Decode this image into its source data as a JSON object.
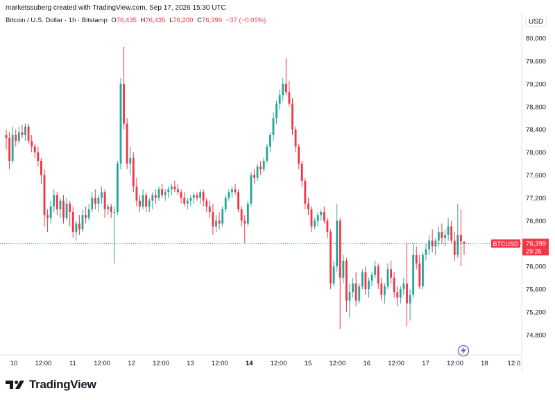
{
  "header": {
    "credit": "marketssuberg created with TradingView.com, Sep 17, 2026 15:30 UTC"
  },
  "legend": {
    "symbol": "Bitcoin / U.S. Dollar · 1h · Bitstamp",
    "o_label": "O",
    "o_value": "76,435",
    "h_label": "H",
    "h_value": "76,435",
    "l_label": "L",
    "l_value": "76,200",
    "c_label": "C",
    "c_value": "76,399",
    "change": "−37 (−0.05%)"
  },
  "currency": "USD",
  "brand": {
    "name": "TradingView"
  },
  "colors": {
    "up": "#26a69a",
    "down": "#f23645",
    "price_line": "#f23645"
  },
  "chart_data": {
    "type": "candlestick",
    "symbol": "BTCUSD",
    "ylim": [
      74400,
      80200
    ],
    "y_ticks": [
      "80,000",
      "79,600",
      "79,200",
      "78,800",
      "78,400",
      "78,000",
      "77,600",
      "77,200",
      "76,800",
      "76,400",
      "76,000",
      "75,600",
      "75,200",
      "74,800"
    ],
    "x_ticks": [
      "10",
      "12:00",
      "11",
      "12:00",
      "12",
      "12:00",
      "13",
      "12:00",
      "14",
      "12:00",
      "15",
      "12:00",
      "16",
      "12:00",
      "17",
      "12:00",
      "18",
      "12:0"
    ],
    "last_price_label": {
      "symbol": "BTCUSD",
      "price": "76,399",
      "countdown": "29:26",
      "value": 76399
    },
    "grid": false,
    "candles": [
      [
        78300,
        78400,
        78050,
        78250
      ],
      [
        78250,
        78350,
        77700,
        77850
      ],
      [
        77850,
        78450,
        77800,
        78300
      ],
      [
        78300,
        78400,
        78100,
        78200
      ],
      [
        78200,
        78450,
        78150,
        78350
      ],
      [
        78350,
        78480,
        78250,
        78300
      ],
      [
        78300,
        78500,
        78200,
        78450
      ],
      [
        78450,
        78500,
        78150,
        78200
      ],
      [
        78200,
        78300,
        78000,
        78100
      ],
      [
        78100,
        78150,
        77900,
        78000
      ],
      [
        78000,
        78100,
        77750,
        77850
      ],
      [
        77850,
        77900,
        77450,
        77600
      ],
      [
        77600,
        77700,
        76700,
        76900
      ],
      [
        76900,
        77000,
        76600,
        76850
      ],
      [
        76850,
        77150,
        76750,
        77050
      ],
      [
        77050,
        77350,
        76950,
        77250
      ],
      [
        77250,
        77300,
        76900,
        77000
      ],
      [
        77000,
        77200,
        76850,
        77150
      ],
      [
        77150,
        77250,
        76750,
        76850
      ],
      [
        76850,
        77200,
        76800,
        77100
      ],
      [
        77100,
        77150,
        76700,
        76950
      ],
      [
        76950,
        77050,
        76500,
        76600
      ],
      [
        76600,
        76800,
        76450,
        76750
      ],
      [
        76750,
        76900,
        76550,
        76650
      ],
      [
        76650,
        77000,
        76600,
        76900
      ],
      [
        76900,
        77050,
        76750,
        76850
      ],
      [
        76850,
        77100,
        76800,
        77000
      ],
      [
        77000,
        77300,
        76950,
        77200
      ],
      [
        77200,
        77350,
        77000,
        77100
      ],
      [
        77100,
        77250,
        76950,
        77200
      ],
      [
        77200,
        77400,
        77100,
        77300
      ],
      [
        77300,
        77350,
        76850,
        77000
      ],
      [
        77000,
        77100,
        76900,
        77050
      ],
      [
        77050,
        77100,
        76850,
        76950
      ],
      [
        76950,
        77050,
        76050,
        76950
      ],
      [
        76950,
        77850,
        76900,
        77800
      ],
      [
        77800,
        79300,
        77700,
        79200
      ],
      [
        79200,
        79850,
        78400,
        78500
      ],
      [
        78500,
        78600,
        77700,
        77800
      ],
      [
        77800,
        78100,
        77600,
        77900
      ],
      [
        77900,
        78000,
        77300,
        77400
      ],
      [
        77400,
        77550,
        77050,
        77150
      ],
      [
        77150,
        77250,
        76950,
        77050
      ],
      [
        77050,
        77350,
        77000,
        77250
      ],
      [
        77250,
        77300,
        76950,
        77050
      ],
      [
        77050,
        77200,
        76950,
        77150
      ],
      [
        77150,
        77300,
        77000,
        77250
      ],
      [
        77250,
        77350,
        77100,
        77200
      ],
      [
        77200,
        77400,
        77150,
        77350
      ],
      [
        77350,
        77450,
        77200,
        77250
      ],
      [
        77250,
        77350,
        77150,
        77300
      ],
      [
        77300,
        77400,
        77200,
        77350
      ],
      [
        77350,
        77450,
        77250,
        77400
      ],
      [
        77400,
        77500,
        77300,
        77350
      ],
      [
        77350,
        77450,
        77250,
        77300
      ],
      [
        77300,
        77350,
        77100,
        77200
      ],
      [
        77200,
        77300,
        77050,
        77100
      ],
      [
        77100,
        77200,
        77000,
        77150
      ],
      [
        77150,
        77250,
        77050,
        77200
      ],
      [
        77200,
        77300,
        77100,
        77250
      ],
      [
        77250,
        77300,
        77150,
        77200
      ],
      [
        77200,
        77350,
        77100,
        77300
      ],
      [
        77300,
        77350,
        77050,
        77150
      ],
      [
        77150,
        77200,
        76950,
        77050
      ],
      [
        77050,
        77150,
        76850,
        76950
      ],
      [
        76950,
        77100,
        76550,
        76700
      ],
      [
        76700,
        76900,
        76600,
        76800
      ],
      [
        76800,
        76950,
        76650,
        76750
      ],
      [
        76750,
        77050,
        76700,
        77000
      ],
      [
        77000,
        77250,
        76950,
        77200
      ],
      [
        77200,
        77350,
        77150,
        77300
      ],
      [
        77300,
        77400,
        77200,
        77350
      ],
      [
        77350,
        77450,
        77250,
        77300
      ],
      [
        77300,
        77350,
        76950,
        77000
      ],
      [
        77000,
        77050,
        76700,
        76800
      ],
      [
        76800,
        76900,
        76400,
        76750
      ],
      [
        76750,
        77150,
        76700,
        77100
      ],
      [
        77100,
        77650,
        77050,
        77600
      ],
      [
        77600,
        77700,
        77450,
        77550
      ],
      [
        77550,
        77800,
        77500,
        77750
      ],
      [
        77750,
        77850,
        77600,
        77700
      ],
      [
        77700,
        77900,
        77650,
        77850
      ],
      [
        77850,
        78150,
        77800,
        78100
      ],
      [
        78100,
        78350,
        78000,
        78300
      ],
      [
        78300,
        78700,
        78200,
        78600
      ],
      [
        78600,
        78900,
        78500,
        78850
      ],
      [
        78850,
        79100,
        78750,
        79000
      ],
      [
        79000,
        79300,
        78900,
        79200
      ],
      [
        79200,
        79650,
        79000,
        79050
      ],
      [
        79050,
        79250,
        78800,
        78850
      ],
      [
        78850,
        78950,
        78300,
        78400
      ],
      [
        78400,
        78450,
        78000,
        78100
      ],
      [
        78100,
        78150,
        77700,
        77800
      ],
      [
        77800,
        77850,
        77400,
        77500
      ],
      [
        77500,
        77550,
        77000,
        77100
      ],
      [
        77100,
        77200,
        76900,
        77000
      ],
      [
        77000,
        77050,
        76600,
        76700
      ],
      [
        76700,
        76850,
        76650,
        76800
      ],
      [
        76800,
        76950,
        76700,
        76900
      ],
      [
        76900,
        77000,
        76800,
        76950
      ],
      [
        76950,
        77050,
        76750,
        76800
      ],
      [
        76800,
        76850,
        76500,
        76600
      ],
      [
        76600,
        76650,
        75600,
        75700
      ],
      [
        75700,
        76100,
        75650,
        76000
      ],
      [
        76000,
        77100,
        75900,
        76800
      ],
      [
        76800,
        76850,
        74900,
        75800
      ],
      [
        75800,
        76200,
        75700,
        76100
      ],
      [
        76100,
        76150,
        75200,
        75400
      ],
      [
        75400,
        75700,
        75100,
        75550
      ],
      [
        75550,
        75800,
        75450,
        75700
      ],
      [
        75700,
        75900,
        75300,
        75400
      ],
      [
        75400,
        75700,
        75350,
        75650
      ],
      [
        75650,
        75950,
        75600,
        75900
      ],
      [
        75900,
        76000,
        75500,
        75600
      ],
      [
        75600,
        75800,
        75450,
        75750
      ],
      [
        75750,
        75900,
        75650,
        75850
      ],
      [
        75850,
        76100,
        75800,
        76000
      ],
      [
        76000,
        76050,
        75600,
        75700
      ],
      [
        75700,
        75800,
        75400,
        75500
      ],
      [
        75500,
        75700,
        75350,
        75650
      ],
      [
        75650,
        76050,
        75600,
        75950
      ],
      [
        75950,
        76100,
        75700,
        75800
      ],
      [
        75800,
        75900,
        75450,
        75550
      ],
      [
        75550,
        75650,
        75300,
        75450
      ],
      [
        75450,
        75650,
        75350,
        75600
      ],
      [
        75600,
        75800,
        75500,
        75700
      ],
      [
        75700,
        76400,
        74950,
        75350
      ],
      [
        75350,
        75600,
        75050,
        75500
      ],
      [
        75500,
        76400,
        75450,
        76200
      ],
      [
        76200,
        76350,
        75950,
        76050
      ],
      [
        76050,
        76200,
        75600,
        75650
      ],
      [
        75650,
        76250,
        75600,
        76200
      ],
      [
        76200,
        76400,
        76100,
        76300
      ],
      [
        76300,
        76550,
        76200,
        76450
      ],
      [
        76450,
        76650,
        76250,
        76350
      ],
      [
        76350,
        76500,
        76200,
        76450
      ],
      [
        76450,
        76700,
        76350,
        76600
      ],
      [
        76600,
        76750,
        76400,
        76500
      ],
      [
        76500,
        76650,
        76350,
        76550
      ],
      [
        76550,
        76850,
        76450,
        76700
      ],
      [
        76700,
        76800,
        76400,
        76450
      ],
      [
        76450,
        76600,
        76100,
        76200
      ],
      [
        76200,
        77100,
        76150,
        76550
      ],
      [
        76550,
        77000,
        76000,
        76435
      ],
      [
        76435,
        76435,
        76200,
        76399
      ]
    ]
  }
}
